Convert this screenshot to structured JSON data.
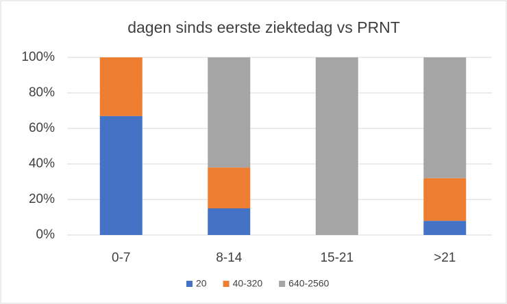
{
  "chart_data": {
    "type": "stacked_bar",
    "title": "dagen sinds eerste ziektedag vs PRNT",
    "categories": [
      "0-7",
      "8-14",
      "15-21",
      ">21"
    ],
    "series": [
      {
        "name": "20",
        "color": "#4472c4",
        "values": [
          67,
          15,
          0,
          8
        ]
      },
      {
        "name": "40-320",
        "color": "#ed7d31",
        "values": [
          33,
          23,
          0,
          24
        ]
      },
      {
        "name": "640-2560",
        "color": "#a5a5a5",
        "values": [
          0,
          62,
          100,
          68
        ]
      }
    ],
    "ylim": [
      0,
      100
    ],
    "yticks": [
      {
        "value": 0,
        "label": "0%"
      },
      {
        "value": 20,
        "label": "20%"
      },
      {
        "value": 40,
        "label": "40%"
      },
      {
        "value": 60,
        "label": "60%"
      },
      {
        "value": 80,
        "label": "80%"
      },
      {
        "value": 100,
        "label": "100%"
      }
    ],
    "grid": true,
    "legend": "bottom"
  }
}
